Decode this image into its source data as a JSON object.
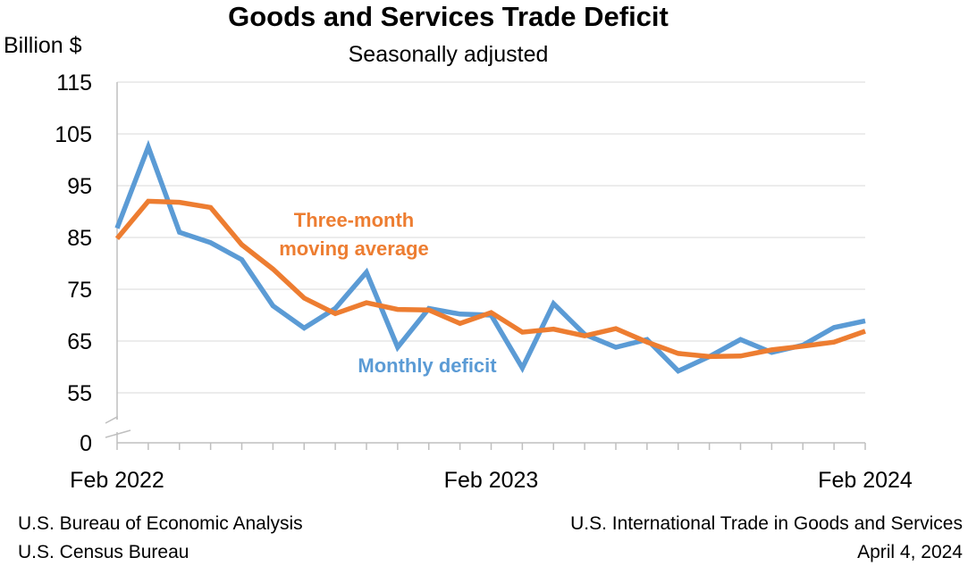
{
  "chart_data": {
    "type": "line",
    "title": "Goods and Services Trade Deficit",
    "subtitle": "Seasonally adjusted",
    "ylabel": "Billion $",
    "xlabel": "",
    "ylim": [
      55,
      115
    ],
    "axis_break_label": "0",
    "y_ticks": [
      115,
      105,
      95,
      85,
      75,
      65,
      55
    ],
    "x_tick_labels": [
      {
        "index": 0,
        "label": "Feb 2022"
      },
      {
        "index": 12,
        "label": "Feb 2023"
      },
      {
        "index": 24,
        "label": "Feb 2024"
      }
    ],
    "grid": true,
    "series": [
      {
        "name": "Monthly deficit",
        "color": "#5b9bd5",
        "values": [
          86.8,
          102.5,
          86.0,
          84.0,
          80.7,
          71.8,
          67.5,
          71.3,
          78.3,
          63.8,
          71.3,
          70.2,
          70.0,
          59.8,
          72.2,
          66.3,
          63.8,
          65.3,
          59.2,
          62.0,
          65.3,
          62.8,
          64.2,
          67.6,
          68.9
        ]
      },
      {
        "name": "Three-month moving average",
        "color": "#ed7d31",
        "values": [
          84.8,
          92.0,
          91.8,
          90.8,
          83.6,
          78.9,
          73.3,
          70.3,
          72.4,
          71.1,
          71.0,
          68.4,
          70.5,
          66.7,
          67.3,
          66.0,
          67.4,
          64.8,
          62.6,
          62.0,
          62.1,
          63.3,
          64.0,
          64.8,
          66.9
        ]
      }
    ],
    "annotations": [
      {
        "series": "Three-month moving average",
        "lines": [
          "Three-month",
          "moving average"
        ],
        "color": "#ed7d31"
      },
      {
        "series": "Monthly deficit",
        "lines": [
          "Monthly deficit"
        ],
        "color": "#5b9bd5"
      }
    ]
  },
  "footer": {
    "left_line1": "U.S. Bureau of Economic Analysis",
    "left_line2": "U.S. Census Bureau",
    "right_line1": "U.S. International Trade in Goods and Services",
    "right_line2": "April 4, 2024"
  }
}
